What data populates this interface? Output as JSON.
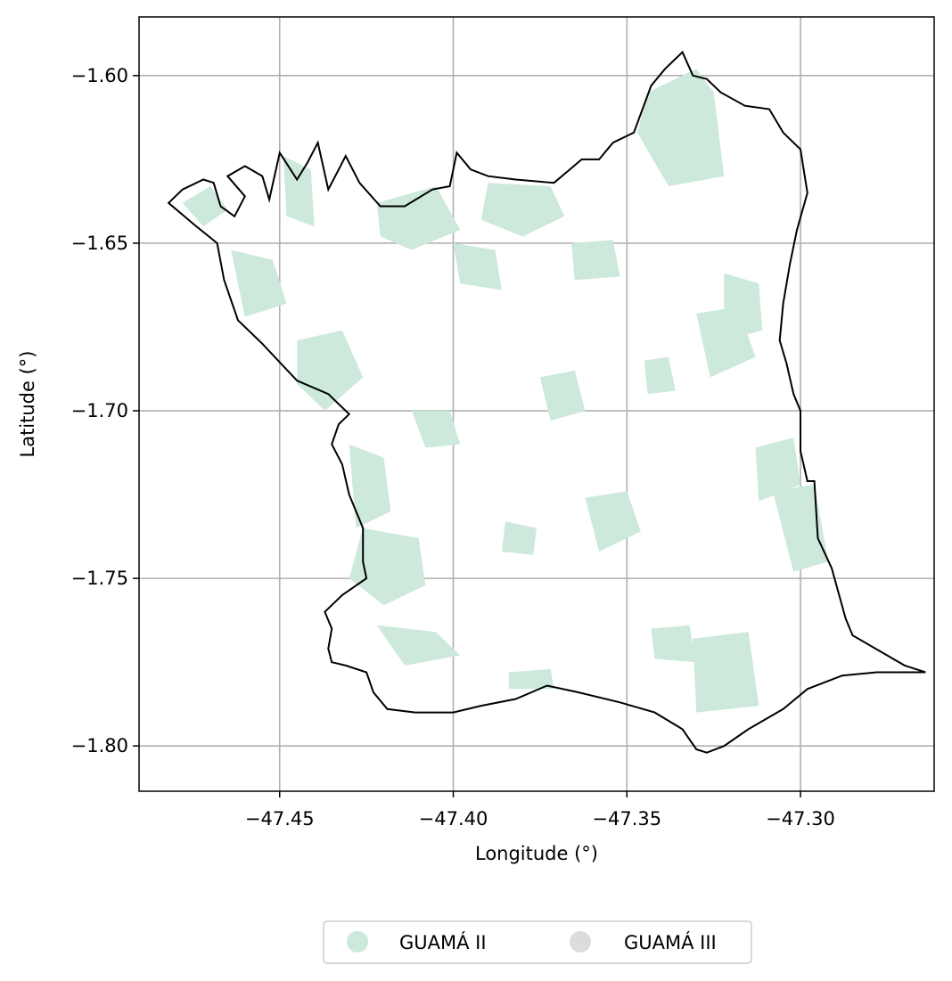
{
  "chart_data": {
    "type": "map",
    "xlabel": "Longitude (°)",
    "ylabel": "Latitude (°)",
    "xlim": [
      -47.4905,
      -47.2615
    ],
    "ylim": [
      -1.8135,
      -1.5825
    ],
    "xticks": [
      -47.45,
      -47.4,
      -47.35,
      -47.3
    ],
    "yticks": [
      -1.6,
      -1.65,
      -1.7,
      -1.75,
      -1.8
    ],
    "xtick_labels": [
      "−47.45",
      "−47.40",
      "−47.35",
      "−47.30"
    ],
    "ytick_labels": [
      "−1.60",
      "−1.65",
      "−1.70",
      "−1.75",
      "−1.80"
    ],
    "grid": true,
    "legend_position": "bottom-center",
    "legend": [
      {
        "label": "GUAMÁ II",
        "color": "#cce9db"
      },
      {
        "label": "GUAMÁ III",
        "color": "#dcdcdc"
      }
    ],
    "boundary_color": "#000000",
    "boundary": [
      [
        -47.482,
        -1.638
      ],
      [
        -47.478,
        -1.634
      ],
      [
        -47.472,
        -1.631
      ],
      [
        -47.469,
        -1.632
      ],
      [
        -47.467,
        -1.639
      ],
      [
        -47.463,
        -1.642
      ],
      [
        -47.46,
        -1.636
      ],
      [
        -47.465,
        -1.63
      ],
      [
        -47.46,
        -1.627
      ],
      [
        -47.455,
        -1.63
      ],
      [
        -47.453,
        -1.637
      ],
      [
        -47.45,
        -1.623
      ],
      [
        -47.445,
        -1.631
      ],
      [
        -47.442,
        -1.626
      ],
      [
        -47.439,
        -1.62
      ],
      [
        -47.436,
        -1.634
      ],
      [
        -47.431,
        -1.624
      ],
      [
        -47.427,
        -1.632
      ],
      [
        -47.421,
        -1.639
      ],
      [
        -47.414,
        -1.639
      ],
      [
        -47.406,
        -1.634
      ],
      [
        -47.401,
        -1.633
      ],
      [
        -47.399,
        -1.623
      ],
      [
        -47.395,
        -1.628
      ],
      [
        -47.39,
        -1.63
      ],
      [
        -47.382,
        -1.631
      ],
      [
        -47.371,
        -1.632
      ],
      [
        -47.363,
        -1.625
      ],
      [
        -47.358,
        -1.625
      ],
      [
        -47.354,
        -1.62
      ],
      [
        -47.348,
        -1.617
      ],
      [
        -47.343,
        -1.603
      ],
      [
        -47.339,
        -1.598
      ],
      [
        -47.334,
        -1.593
      ],
      [
        -47.331,
        -1.6
      ],
      [
        -47.327,
        -1.601
      ],
      [
        -47.323,
        -1.605
      ],
      [
        -47.316,
        -1.609
      ],
      [
        -47.309,
        -1.61
      ],
      [
        -47.305,
        -1.617
      ],
      [
        -47.3,
        -1.622
      ],
      [
        -47.298,
        -1.635
      ],
      [
        -47.301,
        -1.646
      ],
      [
        -47.303,
        -1.656
      ],
      [
        -47.305,
        -1.668
      ],
      [
        -47.306,
        -1.679
      ],
      [
        -47.304,
        -1.686
      ],
      [
        -47.302,
        -1.695
      ],
      [
        -47.3,
        -1.7
      ],
      [
        -47.3,
        -1.712
      ],
      [
        -47.298,
        -1.721
      ],
      [
        -47.296,
        -1.721
      ],
      [
        -47.295,
        -1.738
      ],
      [
        -47.291,
        -1.747
      ],
      [
        -47.287,
        -1.762
      ],
      [
        -47.285,
        -1.767
      ],
      [
        -47.27,
        -1.776
      ],
      [
        -47.264,
        -1.778
      ],
      [
        -47.278,
        -1.778
      ],
      [
        -47.288,
        -1.779
      ],
      [
        -47.298,
        -1.783
      ],
      [
        -47.305,
        -1.789
      ],
      [
        -47.315,
        -1.795
      ],
      [
        -47.322,
        -1.8
      ],
      [
        -47.327,
        -1.802
      ],
      [
        -47.33,
        -1.801
      ],
      [
        -47.334,
        -1.795
      ],
      [
        -47.342,
        -1.79
      ],
      [
        -47.352,
        -1.787
      ],
      [
        -47.364,
        -1.784
      ],
      [
        -47.373,
        -1.782
      ],
      [
        -47.382,
        -1.786
      ],
      [
        -47.392,
        -1.788
      ],
      [
        -47.4,
        -1.79
      ],
      [
        -47.411,
        -1.79
      ],
      [
        -47.419,
        -1.789
      ],
      [
        -47.423,
        -1.784
      ],
      [
        -47.425,
        -1.778
      ],
      [
        -47.431,
        -1.776
      ],
      [
        -47.435,
        -1.775
      ],
      [
        -47.436,
        -1.771
      ],
      [
        -47.435,
        -1.765
      ],
      [
        -47.437,
        -1.76
      ],
      [
        -47.432,
        -1.755
      ],
      [
        -47.425,
        -1.75
      ],
      [
        -47.426,
        -1.745
      ],
      [
        -47.426,
        -1.735
      ],
      [
        -47.43,
        -1.725
      ],
      [
        -47.432,
        -1.716
      ],
      [
        -47.435,
        -1.71
      ],
      [
        -47.433,
        -1.704
      ],
      [
        -47.43,
        -1.701
      ],
      [
        -47.436,
        -1.695
      ],
      [
        -47.445,
        -1.691
      ],
      [
        -47.455,
        -1.68
      ],
      [
        -47.462,
        -1.673
      ],
      [
        -47.466,
        -1.661
      ],
      [
        -47.468,
        -1.65
      ],
      [
        -47.474,
        -1.645
      ],
      [
        -47.482,
        -1.638
      ]
    ],
    "regions": [
      {
        "name": "GUAMÁ II",
        "polygon": [
          [
            -47.478,
            -1.638
          ],
          [
            -47.47,
            -1.633
          ],
          [
            -47.465,
            -1.64
          ],
          [
            -47.472,
            -1.645
          ]
        ]
      },
      {
        "name": "GUAMÁ II",
        "polygon": [
          [
            -47.449,
            -1.624
          ],
          [
            -47.441,
            -1.628
          ],
          [
            -47.44,
            -1.645
          ],
          [
            -47.448,
            -1.642
          ]
        ]
      },
      {
        "name": "GUAMÁ II",
        "polygon": [
          [
            -47.422,
            -1.638
          ],
          [
            -47.405,
            -1.633
          ],
          [
            -47.398,
            -1.646
          ],
          [
            -47.412,
            -1.652
          ],
          [
            -47.421,
            -1.648
          ]
        ]
      },
      {
        "name": "GUAMÁ II",
        "polygon": [
          [
            -47.39,
            -1.632
          ],
          [
            -47.372,
            -1.633
          ],
          [
            -47.368,
            -1.642
          ],
          [
            -47.38,
            -1.648
          ],
          [
            -47.392,
            -1.643
          ]
        ]
      },
      {
        "name": "GUAMÁ II",
        "polygon": [
          [
            -47.344,
            -1.605
          ],
          [
            -47.33,
            -1.598
          ],
          [
            -47.325,
            -1.605
          ],
          [
            -47.322,
            -1.63
          ],
          [
            -47.338,
            -1.633
          ],
          [
            -47.347,
            -1.617
          ]
        ]
      },
      {
        "name": "GUAMÁ II",
        "polygon": [
          [
            -47.464,
            -1.652
          ],
          [
            -47.452,
            -1.655
          ],
          [
            -47.448,
            -1.668
          ],
          [
            -47.46,
            -1.672
          ]
        ]
      },
      {
        "name": "GUAMÁ II",
        "polygon": [
          [
            -47.445,
            -1.679
          ],
          [
            -47.432,
            -1.676
          ],
          [
            -47.426,
            -1.69
          ],
          [
            -47.437,
            -1.7
          ],
          [
            -47.445,
            -1.692
          ]
        ]
      },
      {
        "name": "GUAMÁ II",
        "polygon": [
          [
            -47.43,
            -1.71
          ],
          [
            -47.42,
            -1.714
          ],
          [
            -47.418,
            -1.73
          ],
          [
            -47.428,
            -1.735
          ]
        ]
      },
      {
        "name": "GUAMÁ II",
        "polygon": [
          [
            -47.426,
            -1.735
          ],
          [
            -47.41,
            -1.738
          ],
          [
            -47.408,
            -1.752
          ],
          [
            -47.42,
            -1.758
          ],
          [
            -47.43,
            -1.75
          ]
        ]
      },
      {
        "name": "GUAMÁ II",
        "polygon": [
          [
            -47.422,
            -1.764
          ],
          [
            -47.405,
            -1.766
          ],
          [
            -47.398,
            -1.773
          ],
          [
            -47.414,
            -1.776
          ]
        ]
      },
      {
        "name": "GUAMÁ II",
        "polygon": [
          [
            -47.362,
            -1.726
          ],
          [
            -47.35,
            -1.724
          ],
          [
            -47.346,
            -1.736
          ],
          [
            -47.358,
            -1.742
          ]
        ]
      },
      {
        "name": "GUAMÁ II",
        "polygon": [
          [
            -47.385,
            -1.733
          ],
          [
            -47.376,
            -1.735
          ],
          [
            -47.377,
            -1.743
          ],
          [
            -47.386,
            -1.742
          ]
        ]
      },
      {
        "name": "GUAMÁ II",
        "polygon": [
          [
            -47.322,
            -1.659
          ],
          [
            -47.312,
            -1.662
          ],
          [
            -47.311,
            -1.676
          ],
          [
            -47.322,
            -1.679
          ]
        ]
      },
      {
        "name": "GUAMÁ II",
        "polygon": [
          [
            -47.33,
            -1.671
          ],
          [
            -47.318,
            -1.669
          ],
          [
            -47.313,
            -1.684
          ],
          [
            -47.326,
            -1.69
          ]
        ]
      },
      {
        "name": "GUAMÁ II",
        "polygon": [
          [
            -47.313,
            -1.711
          ],
          [
            -47.302,
            -1.708
          ],
          [
            -47.3,
            -1.722
          ],
          [
            -47.312,
            -1.727
          ]
        ]
      },
      {
        "name": "GUAMÁ II",
        "polygon": [
          [
            -47.308,
            -1.724
          ],
          [
            -47.296,
            -1.722
          ],
          [
            -47.292,
            -1.745
          ],
          [
            -47.302,
            -1.748
          ]
        ]
      },
      {
        "name": "GUAMÁ II",
        "polygon": [
          [
            -47.331,
            -1.768
          ],
          [
            -47.315,
            -1.766
          ],
          [
            -47.312,
            -1.788
          ],
          [
            -47.33,
            -1.79
          ]
        ]
      },
      {
        "name": "GUAMÁ II",
        "polygon": [
          [
            -47.343,
            -1.765
          ],
          [
            -47.332,
            -1.764
          ],
          [
            -47.33,
            -1.775
          ],
          [
            -47.342,
            -1.774
          ]
        ]
      },
      {
        "name": "GUAMÁ II",
        "polygon": [
          [
            -47.384,
            -1.778
          ],
          [
            -47.372,
            -1.777
          ],
          [
            -47.371,
            -1.783
          ],
          [
            -47.384,
            -1.783
          ]
        ]
      },
      {
        "name": "GUAMÁ II",
        "polygon": [
          [
            -47.4,
            -1.65
          ],
          [
            -47.388,
            -1.652
          ],
          [
            -47.386,
            -1.664
          ],
          [
            -47.398,
            -1.662
          ]
        ]
      },
      {
        "name": "GUAMÁ II",
        "polygon": [
          [
            -47.366,
            -1.65
          ],
          [
            -47.354,
            -1.649
          ],
          [
            -47.352,
            -1.66
          ],
          [
            -47.365,
            -1.661
          ]
        ]
      },
      {
        "name": "GUAMÁ II",
        "polygon": [
          [
            -47.412,
            -1.7
          ],
          [
            -47.401,
            -1.7
          ],
          [
            -47.398,
            -1.71
          ],
          [
            -47.408,
            -1.711
          ]
        ]
      },
      {
        "name": "GUAMÁ II",
        "polygon": [
          [
            -47.375,
            -1.69
          ],
          [
            -47.365,
            -1.688
          ],
          [
            -47.362,
            -1.7
          ],
          [
            -47.372,
            -1.703
          ]
        ]
      },
      {
        "name": "GUAMÁ II",
        "polygon": [
          [
            -47.345,
            -1.685
          ],
          [
            -47.338,
            -1.684
          ],
          [
            -47.336,
            -1.694
          ],
          [
            -47.344,
            -1.695
          ]
        ]
      }
    ]
  },
  "legend": {
    "items": [
      {
        "label": "GUAMÁ II",
        "color": "#cce9db"
      },
      {
        "label": "GUAMÁ III",
        "color": "#dcdcdc"
      }
    ]
  }
}
